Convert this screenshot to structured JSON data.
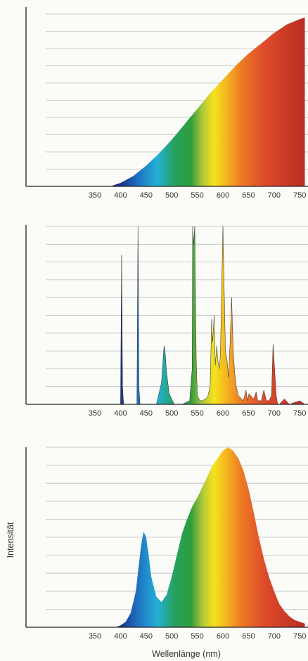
{
  "chart_data": [
    {
      "type": "area",
      "xlabel": "",
      "ylabel": "",
      "xlim": [
        300,
        760
      ],
      "ylim": [
        0,
        1
      ],
      "x_ticks": [
        350,
        400,
        450,
        500,
        550,
        600,
        650,
        700,
        750
      ],
      "grid": true,
      "x": [
        380,
        400,
        425,
        450,
        475,
        500,
        525,
        550,
        575,
        600,
        625,
        650,
        675,
        700,
        725,
        750,
        760
      ],
      "values": [
        0.0,
        0.02,
        0.06,
        0.12,
        0.19,
        0.27,
        0.36,
        0.45,
        0.54,
        0.62,
        0.7,
        0.77,
        0.83,
        0.89,
        0.94,
        0.97,
        0.98
      ]
    },
    {
      "type": "area",
      "xlabel": "",
      "ylabel": "",
      "xlim": [
        300,
        760
      ],
      "ylim": [
        0,
        1
      ],
      "x_ticks": [
        350,
        400,
        450,
        500,
        550,
        600,
        650,
        700,
        750
      ],
      "grid": true,
      "x": [
        395,
        400,
        402,
        404,
        406,
        408,
        410,
        430,
        432,
        434,
        436,
        438,
        440,
        470,
        480,
        485,
        487,
        490,
        495,
        505,
        520,
        535,
        540,
        541,
        543,
        545,
        546,
        548,
        550,
        555,
        560,
        570,
        575,
        578,
        580,
        583,
        585,
        588,
        590,
        593,
        595,
        597,
        600,
        605,
        608,
        611,
        614,
        617,
        620,
        623,
        626,
        630,
        640,
        645,
        648,
        651,
        660,
        665,
        668,
        670,
        675,
        680,
        685,
        690,
        695,
        698,
        701,
        704,
        707,
        710,
        720,
        730,
        750,
        760
      ],
      "values": [
        0.0,
        0.0,
        0.84,
        0.1,
        0.0,
        0.0,
        0.0,
        0.0,
        0.0,
        1.0,
        0.1,
        0.0,
        0.0,
        0.0,
        0.12,
        0.33,
        0.3,
        0.18,
        0.06,
        0.0,
        0.0,
        0.02,
        0.2,
        1.0,
        0.9,
        1.0,
        0.7,
        0.25,
        0.05,
        0.02,
        0.02,
        0.04,
        0.1,
        0.48,
        0.35,
        0.5,
        0.22,
        0.33,
        0.25,
        0.2,
        0.28,
        0.56,
        1.0,
        0.3,
        0.25,
        0.15,
        0.35,
        0.6,
        0.3,
        0.18,
        0.1,
        0.05,
        0.02,
        0.08,
        0.02,
        0.06,
        0.03,
        0.07,
        0.02,
        0.02,
        0.02,
        0.08,
        0.02,
        0.02,
        0.05,
        0.34,
        0.2,
        0.05,
        0.0,
        0.0,
        0.03,
        0.0,
        0.02,
        0.0
      ]
    },
    {
      "type": "area",
      "xlabel": "Wellenlänge (nm)",
      "ylabel": "Intensität",
      "xlim": [
        300,
        760
      ],
      "ylim": [
        0,
        1
      ],
      "x_ticks": [
        350,
        400,
        450,
        500,
        550,
        600,
        650,
        700,
        750
      ],
      "grid": true,
      "x": [
        390,
        400,
        410,
        420,
        430,
        440,
        445,
        450,
        455,
        460,
        470,
        480,
        490,
        500,
        510,
        520,
        530,
        540,
        550,
        560,
        570,
        580,
        590,
        600,
        610,
        620,
        630,
        640,
        650,
        660,
        670,
        680,
        690,
        700,
        710,
        720,
        730,
        740,
        750,
        760
      ],
      "values": [
        0.0,
        0.01,
        0.03,
        0.08,
        0.2,
        0.45,
        0.53,
        0.5,
        0.4,
        0.28,
        0.17,
        0.14,
        0.18,
        0.28,
        0.4,
        0.52,
        0.6,
        0.67,
        0.72,
        0.78,
        0.84,
        0.9,
        0.94,
        0.98,
        1.0,
        0.98,
        0.94,
        0.87,
        0.77,
        0.64,
        0.5,
        0.38,
        0.28,
        0.2,
        0.13,
        0.09,
        0.06,
        0.04,
        0.03,
        0.02
      ]
    }
  ]
}
